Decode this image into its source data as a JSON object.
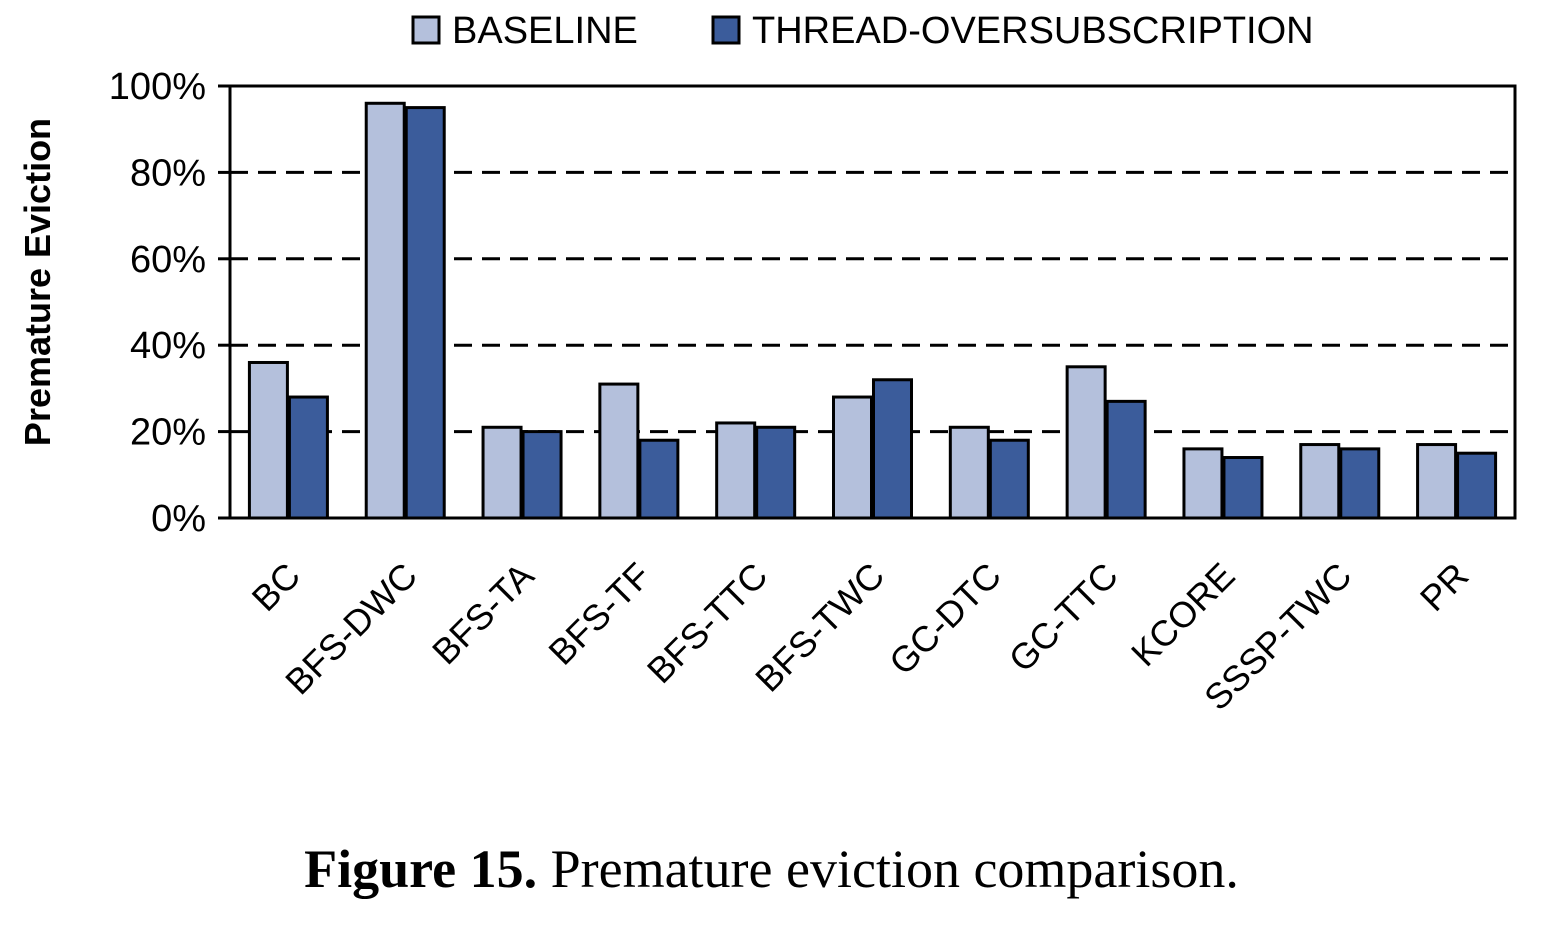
{
  "chart_data": {
    "type": "bar",
    "categories": [
      "BC",
      "BFS-DWC",
      "BFS-TA",
      "BFS-TF",
      "BFS-TTC",
      "BFS-TWC",
      "GC-DTC",
      "GC-TTC",
      "KCORE",
      "SSSP-TWC",
      "PR"
    ],
    "series": [
      {
        "name": "BASELINE",
        "color": "#b4c0dc",
        "values": [
          36,
          96,
          21,
          31,
          22,
          28,
          21,
          35,
          16,
          17,
          17
        ]
      },
      {
        "name": "THREAD-OVERSUBSCRIPTION",
        "color": "#3b5c9b",
        "values": [
          28,
          95,
          20,
          18,
          21,
          32,
          18,
          27,
          14,
          16,
          15
        ]
      }
    ],
    "ylabel": "Premature Eviction",
    "ylim": [
      0,
      100
    ],
    "yticks": [
      0,
      20,
      40,
      60,
      80,
      100
    ],
    "ytick_labels": [
      "0%",
      "20%",
      "40%",
      "60%",
      "80%",
      "100%"
    ],
    "grid": "dashed horizontal",
    "legend_position": "top"
  },
  "caption": {
    "label": "Figure 15.",
    "text": "Premature eviction comparison."
  }
}
